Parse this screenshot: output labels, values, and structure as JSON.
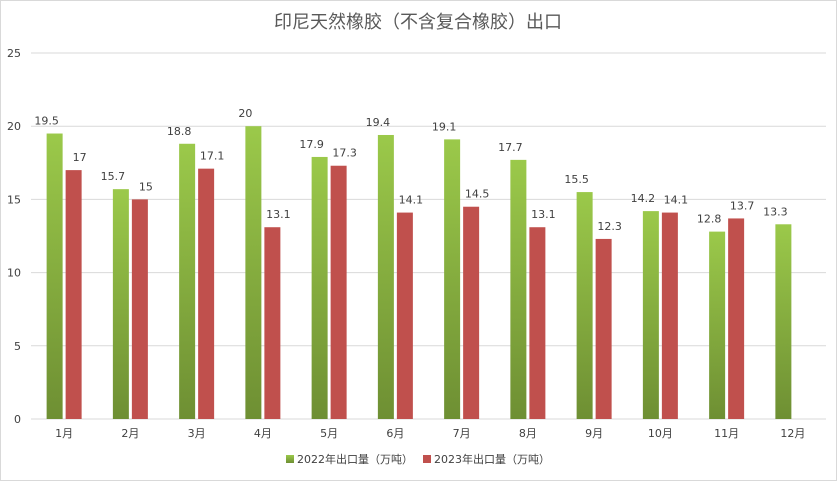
{
  "chart_data": {
    "type": "bar",
    "title": "印尼天然橡胶（不含复合橡胶）出口",
    "categories": [
      "1月",
      "2月",
      "3月",
      "4月",
      "5月",
      "6月",
      "7月",
      "8月",
      "9月",
      "10月",
      "11月",
      "12月"
    ],
    "series": [
      {
        "name": "2022年出口量（万吨）",
        "values": [
          19.5,
          15.7,
          18.8,
          20,
          17.9,
          19.4,
          19.1,
          17.7,
          15.5,
          14.2,
          12.8,
          13.3
        ],
        "color_top": "#9bc94a",
        "color_bottom": "#6e8f33"
      },
      {
        "name": "2023年出口量（万吨）",
        "values": [
          17,
          15,
          17.1,
          13.1,
          17.3,
          14.1,
          14.5,
          13.1,
          12.3,
          14.1,
          13.7,
          null
        ],
        "color": "#c0504d"
      }
    ],
    "y_ticks": [
      0,
      5,
      10,
      15,
      20,
      25
    ],
    "ylim": [
      0,
      25
    ],
    "grid": true,
    "legend_position": "bottom"
  }
}
